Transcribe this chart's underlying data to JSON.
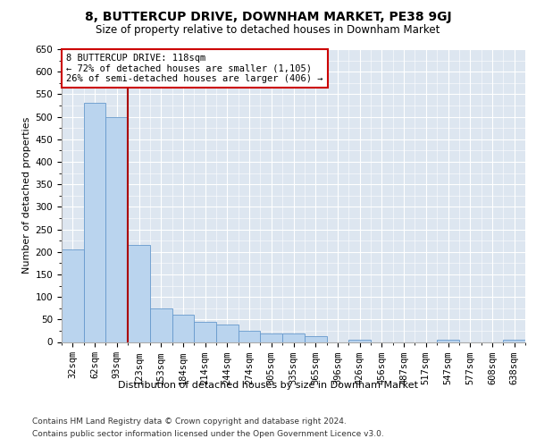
{
  "title": "8, BUTTERCUP DRIVE, DOWNHAM MARKET, PE38 9GJ",
  "subtitle": "Size of property relative to detached houses in Downham Market",
  "xlabel": "Distribution of detached houses by size in Downham Market",
  "ylabel": "Number of detached properties",
  "footer_line1": "Contains HM Land Registry data © Crown copyright and database right 2024.",
  "footer_line2": "Contains public sector information licensed under the Open Government Licence v3.0.",
  "categories": [
    "32sqm",
    "62sqm",
    "93sqm",
    "123sqm",
    "153sqm",
    "184sqm",
    "214sqm",
    "244sqm",
    "274sqm",
    "305sqm",
    "335sqm",
    "365sqm",
    "396sqm",
    "426sqm",
    "456sqm",
    "487sqm",
    "517sqm",
    "547sqm",
    "577sqm",
    "608sqm",
    "638sqm"
  ],
  "values": [
    205,
    530,
    500,
    215,
    75,
    60,
    45,
    38,
    25,
    18,
    18,
    12,
    0,
    4,
    0,
    0,
    0,
    4,
    0,
    0,
    4
  ],
  "bar_color": "#bad4ee",
  "bar_edge_color": "#6699cc",
  "background_color": "#dde6f0",
  "vline_x_idx": 2.5,
  "vline_color": "#aa0000",
  "annotation_line1": "8 BUTTERCUP DRIVE: 118sqm",
  "annotation_line2": "← 72% of detached houses are smaller (1,105)",
  "annotation_line3": "26% of semi-detached houses are larger (406) →",
  "annotation_box_color": "#ffffff",
  "annotation_box_edge": "#cc0000",
  "ylim": [
    0,
    650
  ],
  "yticks": [
    0,
    50,
    100,
    150,
    200,
    250,
    300,
    350,
    400,
    450,
    500,
    550,
    600,
    650
  ],
  "title_fontsize": 10,
  "subtitle_fontsize": 8.5,
  "ylabel_fontsize": 8,
  "xlabel_fontsize": 8,
  "tick_fontsize": 7.5,
  "footer_fontsize": 6.5
}
